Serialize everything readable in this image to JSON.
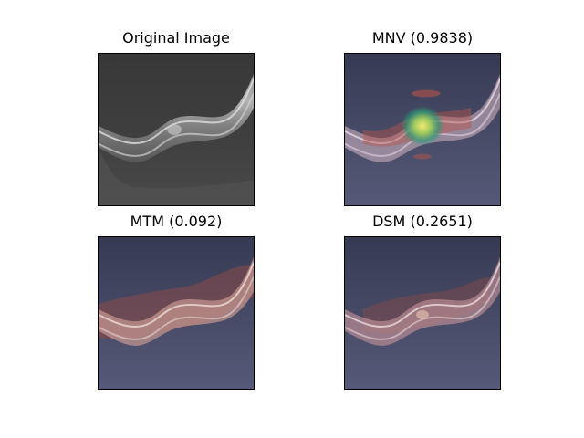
{
  "figure": {
    "panels": [
      {
        "title": "Original Image",
        "overlay": "none"
      },
      {
        "title": "MNV (0.9838)",
        "overlay": "heatmap-hotspot"
      },
      {
        "title": "MTM (0.092)",
        "overlay": "heatmap-red"
      },
      {
        "title": "DSM (0.2651)",
        "overlay": "heatmap-red"
      }
    ]
  },
  "colors": {
    "background_gray": "#3a3a3a",
    "overlay_navy": "#3b3f5e",
    "heat_red": "#b8544a",
    "heat_yellow": "#e8e060",
    "heat_green": "#3ca060"
  }
}
